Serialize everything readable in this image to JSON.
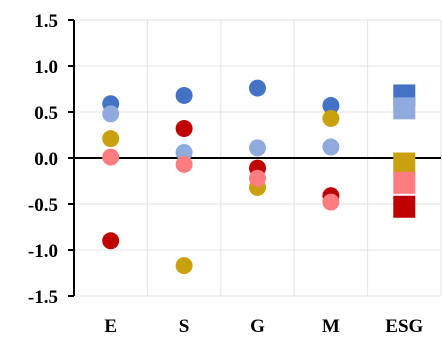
{
  "chart_data": {
    "type": "scatter",
    "title": "",
    "xlabel": "",
    "ylabel": "",
    "ylim": [
      -1.5,
      1.5
    ],
    "yticks": [
      "1.5",
      "1.0",
      "0.5",
      "0.0",
      "-0.5",
      "-1.0",
      "-1.5"
    ],
    "ytick_values": [
      1.5,
      1.0,
      0.5,
      0.0,
      -0.5,
      -1.0,
      -1.5
    ],
    "categories": [
      "E",
      "S",
      "G",
      "M",
      "ESG"
    ],
    "grid": true,
    "legend": "none",
    "series": [
      {
        "color": "#4472C4",
        "values": [
          0.59,
          0.68,
          0.76,
          0.57,
          0.68
        ],
        "markers": [
          "circle",
          "circle",
          "circle",
          "circle",
          "square"
        ]
      },
      {
        "color": "#8FAADC",
        "values": [
          0.48,
          0.06,
          0.11,
          0.12,
          0.54
        ],
        "markers": [
          "circle",
          "circle",
          "circle",
          "circle",
          "square"
        ]
      },
      {
        "color": "#C9A00E",
        "values": [
          0.21,
          -1.17,
          -0.32,
          0.43,
          -0.06
        ],
        "markers": [
          "circle",
          "circle",
          "circle",
          "circle",
          "square"
        ]
      },
      {
        "color": "#C00000",
        "values": [
          -0.9,
          0.32,
          -0.11,
          -0.41,
          -0.53
        ],
        "markers": [
          "circle",
          "circle",
          "circle",
          "circle",
          "square"
        ]
      },
      {
        "color": "#FF7C80",
        "values": [
          0.01,
          -0.07,
          -0.22,
          -0.48,
          -0.27
        ],
        "markers": [
          "circle",
          "circle",
          "circle",
          "circle",
          "square"
        ]
      }
    ]
  }
}
